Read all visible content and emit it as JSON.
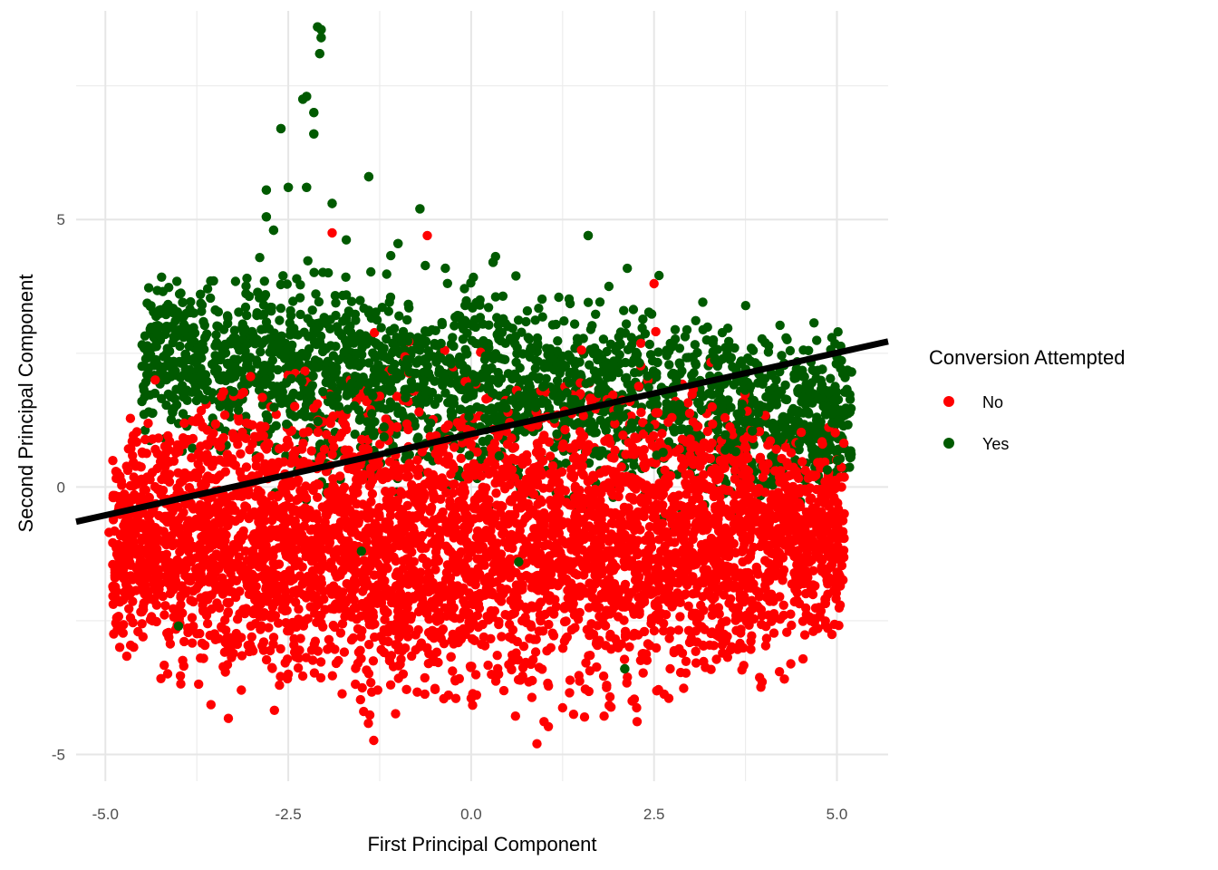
{
  "chart_data": {
    "type": "scatter",
    "title": "",
    "xlabel": "First Principal Component",
    "ylabel": "Second Principal Component",
    "xlim": [
      -5.4,
      5.7
    ],
    "ylim": [
      -5.5,
      8.9
    ],
    "x_ticks": [
      {
        "value": -5.0,
        "label": "-5.0"
      },
      {
        "value": -2.5,
        "label": "-2.5"
      },
      {
        "value": 0.0,
        "label": "0.0"
      },
      {
        "value": 2.5,
        "label": "2.5"
      },
      {
        "value": 5.0,
        "label": "5.0"
      }
    ],
    "y_ticks": [
      {
        "value": -5,
        "label": "-5"
      },
      {
        "value": 0,
        "label": "0"
      },
      {
        "value": 5,
        "label": "5"
      }
    ],
    "grid": true,
    "legend": {
      "title": "Conversion Attempted",
      "placement": "right",
      "entries": [
        {
          "label": "No",
          "color": "#ff0000"
        },
        {
          "label": "Yes",
          "color": "#005a00"
        }
      ]
    },
    "series": [
      {
        "name": "No",
        "color": "#ff0000",
        "cloud": {
          "x_range": [
            -4.9,
            5.1
          ],
          "center_y": -1.0,
          "spread_y": 1.3,
          "n_points": 4500
        },
        "outliers": [
          [
            -4.95,
            -0.85
          ],
          [
            -4.8,
            0.2
          ],
          [
            -1.9,
            4.75
          ],
          [
            -0.6,
            4.7
          ],
          [
            2.5,
            3.8
          ],
          [
            0.9,
            -4.8
          ],
          [
            1.55,
            -4.3
          ],
          [
            1.4,
            -4.25
          ],
          [
            0.0,
            -3.95
          ],
          [
            -3.7,
            -3.2
          ],
          [
            -2.5,
            -3.5
          ],
          [
            4.9,
            -1.3
          ],
          [
            5.1,
            -0.5
          ],
          [
            -1.1,
            -3.7
          ],
          [
            2.2,
            -4.0
          ]
        ]
      },
      {
        "name": "Yes",
        "color": "#005a00",
        "cloud": {
          "x_range": [
            -4.5,
            5.2
          ],
          "center_y": 1.8,
          "spread_y": 0.9,
          "n_points": 1800
        },
        "outliers": [
          [
            -2.1,
            8.6
          ],
          [
            -2.05,
            8.55
          ],
          [
            -2.05,
            8.4
          ],
          [
            -2.07,
            8.1
          ],
          [
            -2.25,
            7.3
          ],
          [
            -2.3,
            7.25
          ],
          [
            -2.15,
            7.0
          ],
          [
            -2.15,
            6.6
          ],
          [
            -2.6,
            6.7
          ],
          [
            -1.4,
            5.8
          ],
          [
            -2.8,
            5.55
          ],
          [
            -2.5,
            5.6
          ],
          [
            -2.25,
            5.6
          ],
          [
            -1.9,
            5.3
          ],
          [
            -0.7,
            5.2
          ],
          [
            1.6,
            4.7
          ],
          [
            -2.8,
            5.05
          ],
          [
            -2.7,
            4.8
          ],
          [
            -1.0,
            4.55
          ],
          [
            0.3,
            4.2
          ],
          [
            -4.1,
            3.0
          ],
          [
            -3.7,
            3.6
          ],
          [
            -4.4,
            2.5
          ],
          [
            -4.5,
            1.6
          ],
          [
            -1.5,
            -1.2
          ],
          [
            0.65,
            -1.4
          ],
          [
            2.1,
            -3.4
          ],
          [
            -4.0,
            -2.6
          ],
          [
            5.2,
            2.15
          ],
          [
            4.8,
            2.2
          ]
        ]
      }
    ],
    "fit_line": {
      "color": "#000000",
      "x": [
        -5.4,
        5.7
      ],
      "y": [
        -0.65,
        2.72
      ]
    }
  }
}
